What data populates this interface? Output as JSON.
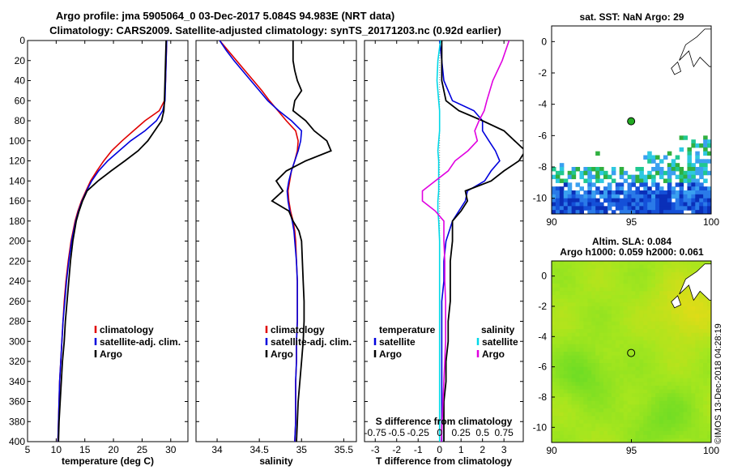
{
  "header": {
    "title_line1": "Argo profile: jma 5905064_0 03-Dec-2017 5.084S 94.983E (NRT data)",
    "title_line2": "Climatology: CARS2009. Satellite-adjusted climatology: synTS_20171203.nc (0.92d earlier)"
  },
  "footer": {
    "credit": "©IMOS 13-Dec-2018 04:28:19"
  },
  "colors": {
    "climatology": "#e00000",
    "satellite": "#0000dd",
    "argo": "#000000",
    "sal_satellite": "#00d8e8",
    "sal_argo": "#e000e0"
  },
  "chart_data": [
    {
      "id": "temp",
      "type": "line",
      "xlabel": "temperature (deg C)",
      "ylabel": "",
      "xlim": [
        5,
        33
      ],
      "ylim": [
        400,
        0
      ],
      "xticks": [
        5,
        10,
        15,
        20,
        25,
        30
      ],
      "yticks": [
        0,
        20,
        40,
        60,
        80,
        100,
        120,
        140,
        160,
        180,
        200,
        220,
        240,
        260,
        280,
        300,
        320,
        340,
        360,
        380,
        400
      ],
      "legend": {
        "position": "bottom-right",
        "labels": [
          "climatology",
          "satellite-adj. clim.",
          "Argo"
        ]
      },
      "depth": [
        0,
        20,
        40,
        60,
        70,
        80,
        90,
        100,
        110,
        120,
        130,
        140,
        150,
        160,
        170,
        180,
        200,
        220,
        240,
        260,
        280,
        300,
        320,
        340,
        360,
        380,
        400
      ],
      "series": [
        {
          "name": "climatology",
          "color": "#e00000",
          "values": [
            29.3,
            29.2,
            29.1,
            28.9,
            28.0,
            25.5,
            23.5,
            21.5,
            19.7,
            18.3,
            17.1,
            16.0,
            15.2,
            14.4,
            13.8,
            13.3,
            12.6,
            12.1,
            11.7,
            11.4,
            11.2,
            11.0,
            10.8,
            10.6,
            10.5,
            10.4,
            10.3
          ]
        },
        {
          "name": "satellite-adj. clim.",
          "color": "#0000dd",
          "values": [
            29.3,
            29.2,
            29.1,
            29.0,
            28.6,
            27.5,
            25.5,
            23.0,
            21.0,
            19.0,
            17.4,
            16.2,
            15.3,
            14.5,
            13.9,
            13.4,
            12.7,
            12.2,
            11.8,
            11.5,
            11.2,
            11.0,
            10.8,
            10.6,
            10.5,
            10.4,
            10.3
          ]
        },
        {
          "name": "Argo",
          "color": "#000000",
          "values": [
            29.2,
            29.1,
            29.0,
            28.9,
            28.8,
            28.4,
            27.2,
            26.0,
            24.3,
            22.0,
            19.6,
            17.3,
            15.4,
            14.6,
            14.0,
            13.5,
            12.9,
            12.5,
            12.2,
            11.9,
            11.6,
            11.4,
            11.1,
            10.9,
            10.7,
            10.5,
            10.4
          ]
        }
      ]
    },
    {
      "id": "sal",
      "type": "line",
      "xlabel": "salinity",
      "ylabel": "",
      "xlim": [
        33.75,
        35.65
      ],
      "ylim": [
        400,
        0
      ],
      "xticks": [
        34,
        34.5,
        35,
        35.5
      ],
      "legend": {
        "position": "bottom-right",
        "labels": [
          "climatology",
          "satellite-adj. clim.",
          "Argo"
        ]
      },
      "depth": [
        0,
        10,
        20,
        30,
        40,
        50,
        60,
        70,
        80,
        90,
        100,
        110,
        120,
        130,
        140,
        150,
        160,
        170,
        180,
        190,
        200,
        220,
        240,
        260,
        280,
        300,
        320,
        340,
        360,
        380,
        400
      ],
      "series": [
        {
          "name": "climatology",
          "color": "#e00000",
          "values": [
            34.03,
            34.13,
            34.23,
            34.33,
            34.43,
            34.53,
            34.62,
            34.72,
            34.82,
            34.93,
            34.96,
            34.95,
            34.92,
            34.88,
            34.86,
            34.84,
            34.85,
            34.87,
            34.9,
            34.92,
            34.93,
            34.94,
            34.95,
            34.95,
            34.95,
            34.94,
            34.94,
            34.93,
            34.93,
            34.93,
            34.92
          ]
        },
        {
          "name": "satellite-adj. clim.",
          "color": "#0000dd",
          "values": [
            34.03,
            34.11,
            34.2,
            34.3,
            34.4,
            34.5,
            34.6,
            34.73,
            34.88,
            35.0,
            34.99,
            34.96,
            34.92,
            34.88,
            34.85,
            34.83,
            34.84,
            34.86,
            34.89,
            34.91,
            34.92,
            34.94,
            34.95,
            34.95,
            34.95,
            34.94,
            34.94,
            34.93,
            34.93,
            34.93,
            34.92
          ]
        },
        {
          "name": "Argo",
          "color": "#000000",
          "values": [
            34.9,
            34.9,
            34.9,
            34.92,
            34.95,
            35.0,
            34.92,
            34.9,
            35.05,
            35.15,
            35.3,
            35.35,
            35.05,
            34.82,
            34.7,
            34.78,
            34.65,
            34.85,
            34.9,
            34.97,
            35.0,
            35.01,
            35.02,
            35.03,
            35.03,
            35.02,
            35.0,
            34.98,
            34.96,
            34.95,
            34.94
          ]
        }
      ]
    },
    {
      "id": "diff",
      "type": "line",
      "xlabel": "T difference from climatology",
      "top_axis_label": "S difference from climatology",
      "xlim": [
        -3.5,
        3.9
      ],
      "ylim": [
        400,
        0
      ],
      "xticks": [
        -3,
        -2,
        -1,
        0,
        1,
        2,
        3
      ],
      "top_ticks": [
        -0.75,
        -0.5,
        -0.25,
        0,
        0.25,
        0.5,
        0.75
      ],
      "top_tick_labels": [
        "-0.75",
        "-0.5",
        "-0.25",
        "0",
        "0.25",
        "0.5",
        "0.75"
      ],
      "legend": {
        "temperature_title": "temperature",
        "salinity_title": "salinity",
        "temperature_labels": [
          "satellite",
          "Argo"
        ],
        "salinity_labels": [
          "satellite",
          "Argo"
        ]
      },
      "depth": [
        0,
        20,
        40,
        60,
        70,
        80,
        90,
        100,
        110,
        120,
        130,
        140,
        150,
        160,
        170,
        180,
        200,
        220,
        240,
        260,
        280,
        300,
        320,
        340,
        360,
        380,
        400
      ],
      "series": [
        {
          "name": "temperature satellite",
          "color": "#0000dd",
          "values": [
            0,
            0.1,
            0.2,
            0.6,
            1.6,
            2.0,
            2.0,
            2.3,
            2.6,
            2.8,
            2.4,
            2.1,
            1.3,
            1.2,
            0.9,
            0.6,
            0.3,
            0.2,
            0.2,
            0.1,
            0.1,
            0.1,
            0.1,
            0.1,
            0.1,
            0.1,
            0.1
          ]
        },
        {
          "name": "temperature Argo",
          "color": "#000000",
          "values": [
            0.1,
            0.1,
            0.1,
            0.3,
            0.9,
            2.0,
            3.0,
            3.5,
            4.0,
            3.7,
            3.0,
            2.4,
            1.2,
            1.3,
            1.0,
            0.6,
            0.6,
            0.5,
            0.5,
            0.5,
            0.4,
            0.4,
            0.3,
            0.3,
            0.2,
            0.2,
            0.2
          ]
        },
        {
          "name": "salinity satellite",
          "color": "#00d8e8",
          "values": [
            0.01,
            -0.02,
            -0.03,
            -0.01,
            0.0,
            0.0,
            0.0,
            -0.01,
            -0.02,
            -0.01,
            -0.01,
            -0.01,
            -0.01,
            -0.02,
            -0.02,
            -0.01,
            0.0,
            0.0,
            0.0,
            0.0,
            0.0,
            0.0,
            0.0,
            0.0,
            0.0,
            0.0,
            0.0
          ]
        },
        {
          "name": "salinity Argo",
          "color": "#e000e0",
          "values": [
            0.81,
            0.73,
            0.62,
            0.55,
            0.52,
            0.46,
            0.41,
            0.44,
            0.33,
            0.18,
            0.1,
            -0.05,
            -0.2,
            -0.2,
            -0.05,
            0.05,
            0.05,
            0.06,
            0.06,
            0.07,
            0.07,
            0.07,
            0.06,
            0.05,
            0.04,
            0.03,
            0.02
          ]
        }
      ]
    },
    {
      "id": "sst",
      "type": "heatmap",
      "title": "sat. SST: NaN Argo: 29",
      "xlim": [
        90,
        100
      ],
      "ylim": [
        -11,
        1
      ],
      "xticks": [
        90,
        95,
        100
      ],
      "yticks": [
        0,
        -2,
        -4,
        -6,
        -8,
        -10
      ],
      "argo_point": {
        "lon": 94.983,
        "lat": -5.084
      }
    },
    {
      "id": "sla",
      "type": "heatmap",
      "title_line1": "Altim. SLA: 0.084",
      "title_line2": "Argo h1000: 0.059 h2000: 0.061",
      "xlim": [
        90,
        100
      ],
      "ylim": [
        -11,
        1
      ],
      "xticks": [
        90,
        95,
        100
      ],
      "yticks": [
        0,
        -2,
        -4,
        -6,
        -8,
        -10
      ],
      "argo_point": {
        "lon": 94.983,
        "lat": -5.084
      }
    }
  ]
}
